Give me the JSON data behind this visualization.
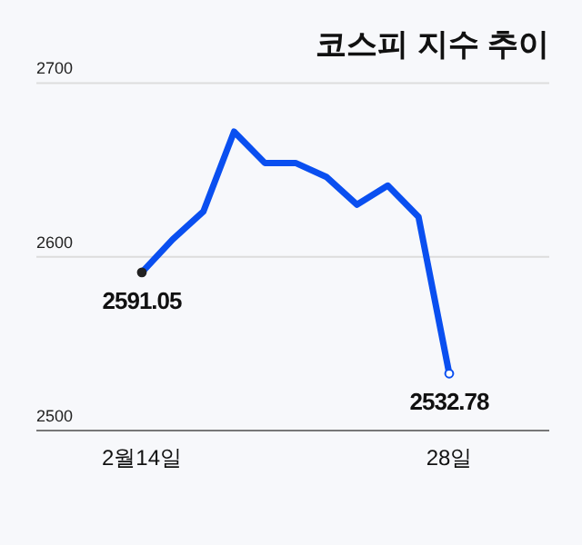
{
  "chart_data": {
    "type": "line",
    "title": "코스피 지수 추이",
    "categories": [
      "2월14일",
      null,
      null,
      null,
      null,
      null,
      null,
      null,
      null,
      null,
      "28일"
    ],
    "series": [
      {
        "color": "#0a4ff0",
        "values": [
          2591.05,
          2610,
          2626,
          2672,
          2654,
          2654,
          2646,
          2630,
          2641,
          2623,
          2532.78
        ],
        "value_labels": [
          "2591.05",
          null,
          null,
          null,
          null,
          null,
          null,
          null,
          null,
          null,
          "2532.78"
        ]
      }
    ],
    "ylim": [
      2500,
      2700
    ],
    "yticks": [
      2500,
      2600,
      2700
    ],
    "grid": "y",
    "line_style": "solid"
  }
}
